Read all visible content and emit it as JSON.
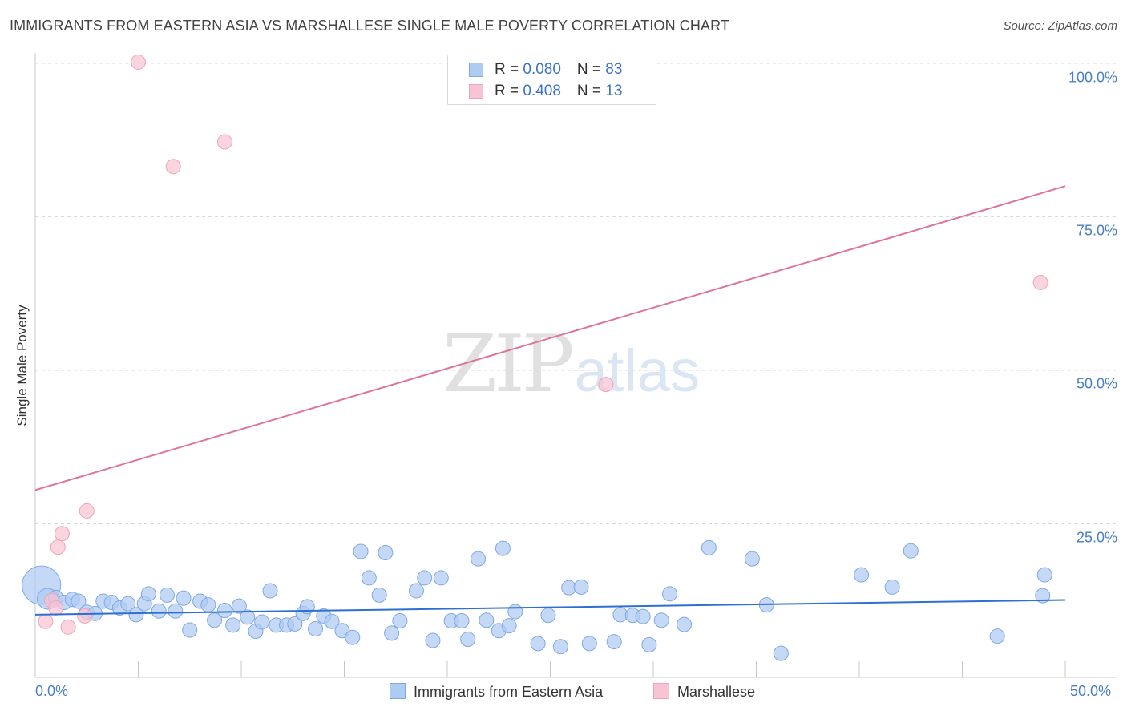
{
  "header": {
    "title": "IMMIGRANTS FROM EASTERN ASIA VS MARSHALLESE SINGLE MALE POVERTY CORRELATION CHART",
    "source": "Source: ZipAtlas.com"
  },
  "watermark": {
    "zip": "ZIP",
    "atlas": "atlas"
  },
  "legend_top": {
    "rows": [
      {
        "r_label": "R = ",
        "r_value": "0.080",
        "n_label": "N = ",
        "n_value": "83"
      },
      {
        "r_label": "R = ",
        "r_value": "0.408",
        "n_label": "N = ",
        "n_value": "13"
      }
    ]
  },
  "legend_bottom": {
    "items": [
      {
        "label": "Immigrants from Eastern Asia"
      },
      {
        "label": "Marshallese"
      }
    ]
  },
  "colors": {
    "blue_fill": "#aecbf2",
    "blue_stroke": "#7ea9e3",
    "blue_line": "#2e6fd1",
    "pink_fill": "#f8c3d2",
    "pink_stroke": "#eea4b9",
    "pink_line": "#e07398",
    "grid": "#d9d9d9",
    "axis": "#c8c8c8",
    "tick_text": "#4a7fc4"
  },
  "chart_data": {
    "type": "scatter",
    "title": "IMMIGRANTS FROM EASTERN ASIA VS MARSHALLESE SINGLE MALE POVERTY CORRELATION CHART",
    "xlabel": "",
    "ylabel": "Single Male Poverty",
    "xlim": [
      0,
      50
    ],
    "ylim": [
      0,
      100
    ],
    "x_tick_labels": [
      "0.0%",
      "50.0%"
    ],
    "y_tick_labels": [
      "100.0%",
      "75.0%",
      "50.0%",
      "25.0%"
    ],
    "y_ticks": [
      100,
      75,
      50,
      25
    ],
    "series": [
      {
        "name": "Immigrants from Eastern Asia",
        "R": 0.08,
        "N": 83,
        "trend": {
          "x": [
            0,
            50
          ],
          "y": [
            10.2,
            12.6
          ]
        },
        "points": [
          [
            0.3,
            15.0,
            24
          ],
          [
            0.6,
            12.8,
            13
          ],
          [
            1.0,
            13.0,
            9
          ],
          [
            1.4,
            12.2,
            9
          ],
          [
            1.8,
            12.7,
            9
          ],
          [
            2.1,
            12.4,
            9
          ],
          [
            2.5,
            10.6,
            9
          ],
          [
            2.9,
            10.4,
            9
          ],
          [
            3.3,
            12.4,
            9
          ],
          [
            3.7,
            12.2,
            9
          ],
          [
            4.1,
            11.3,
            9
          ],
          [
            4.5,
            12.0,
            9
          ],
          [
            4.9,
            10.2,
            9
          ],
          [
            5.3,
            12.0,
            9
          ],
          [
            5.5,
            13.6,
            9
          ],
          [
            6.0,
            10.8,
            9
          ],
          [
            6.4,
            13.4,
            9
          ],
          [
            6.8,
            10.8,
            9
          ],
          [
            7.2,
            12.9,
            9
          ],
          [
            7.5,
            7.7,
            9
          ],
          [
            8.0,
            12.4,
            9
          ],
          [
            8.4,
            11.8,
            9
          ],
          [
            8.7,
            9.3,
            9
          ],
          [
            9.2,
            10.9,
            9
          ],
          [
            9.6,
            8.5,
            9
          ],
          [
            9.9,
            11.6,
            9
          ],
          [
            10.3,
            9.8,
            9
          ],
          [
            10.7,
            7.5,
            9
          ],
          [
            11.0,
            9.0,
            9
          ],
          [
            11.4,
            14.1,
            9
          ],
          [
            11.7,
            8.5,
            9
          ],
          [
            12.2,
            8.5,
            9
          ],
          [
            12.6,
            8.7,
            9
          ],
          [
            13.0,
            10.4,
            9
          ],
          [
            13.2,
            11.5,
            9
          ],
          [
            13.6,
            7.9,
            9
          ],
          [
            14.0,
            10.0,
            9
          ],
          [
            14.4,
            9.1,
            9
          ],
          [
            14.9,
            7.6,
            9
          ],
          [
            15.4,
            6.5,
            9
          ],
          [
            15.8,
            20.5,
            9
          ],
          [
            16.2,
            16.2,
            9
          ],
          [
            16.7,
            13.4,
            9
          ],
          [
            17.0,
            20.3,
            9
          ],
          [
            17.3,
            7.2,
            9
          ],
          [
            17.7,
            9.2,
            9
          ],
          [
            18.5,
            14.1,
            9
          ],
          [
            18.9,
            16.2,
            9
          ],
          [
            19.3,
            6.0,
            9
          ],
          [
            19.7,
            16.2,
            9
          ],
          [
            20.2,
            9.2,
            9
          ],
          [
            20.7,
            9.2,
            9
          ],
          [
            21.0,
            6.2,
            9
          ],
          [
            21.5,
            19.3,
            9
          ],
          [
            21.9,
            9.3,
            9
          ],
          [
            22.5,
            7.6,
            9
          ],
          [
            22.7,
            21.0,
            9
          ],
          [
            23.0,
            8.4,
            9
          ],
          [
            23.3,
            10.7,
            9
          ],
          [
            24.4,
            5.5,
            9
          ],
          [
            24.9,
            10.1,
            9
          ],
          [
            25.5,
            5.0,
            9
          ],
          [
            25.9,
            14.6,
            9
          ],
          [
            26.5,
            14.7,
            9
          ],
          [
            26.9,
            5.5,
            9
          ],
          [
            28.1,
            5.8,
            9
          ],
          [
            28.4,
            10.2,
            9
          ],
          [
            29.0,
            10.1,
            9
          ],
          [
            29.5,
            9.9,
            9
          ],
          [
            29.8,
            5.3,
            9
          ],
          [
            30.4,
            9.3,
            9
          ],
          [
            30.8,
            13.6,
            9
          ],
          [
            31.5,
            8.6,
            9
          ],
          [
            32.7,
            21.1,
            9
          ],
          [
            34.8,
            19.3,
            9
          ],
          [
            35.5,
            11.8,
            9
          ],
          [
            36.2,
            3.9,
            9
          ],
          [
            40.1,
            16.7,
            9
          ],
          [
            41.6,
            14.7,
            9
          ],
          [
            42.5,
            20.6,
            9
          ],
          [
            46.7,
            6.7,
            9
          ],
          [
            48.9,
            13.3,
            9
          ],
          [
            49.0,
            16.7,
            9
          ]
        ]
      },
      {
        "name": "Marshallese",
        "R": 0.408,
        "N": 13,
        "trend": {
          "x": [
            0,
            50
          ],
          "y": [
            30.5,
            80.0
          ]
        },
        "points": [
          [
            0.5,
            9.1,
            9
          ],
          [
            0.8,
            12.5,
            9
          ],
          [
            1.0,
            11.3,
            9
          ],
          [
            1.1,
            21.2,
            9
          ],
          [
            1.3,
            23.4,
            9
          ],
          [
            1.6,
            8.2,
            9
          ],
          [
            2.4,
            10.0,
            9
          ],
          [
            2.5,
            27.1,
            9
          ],
          [
            5.0,
            100.2,
            9
          ],
          [
            6.7,
            83.2,
            9
          ],
          [
            9.2,
            87.2,
            9
          ],
          [
            27.7,
            47.7,
            9
          ],
          [
            48.8,
            64.3,
            9
          ]
        ]
      }
    ]
  }
}
